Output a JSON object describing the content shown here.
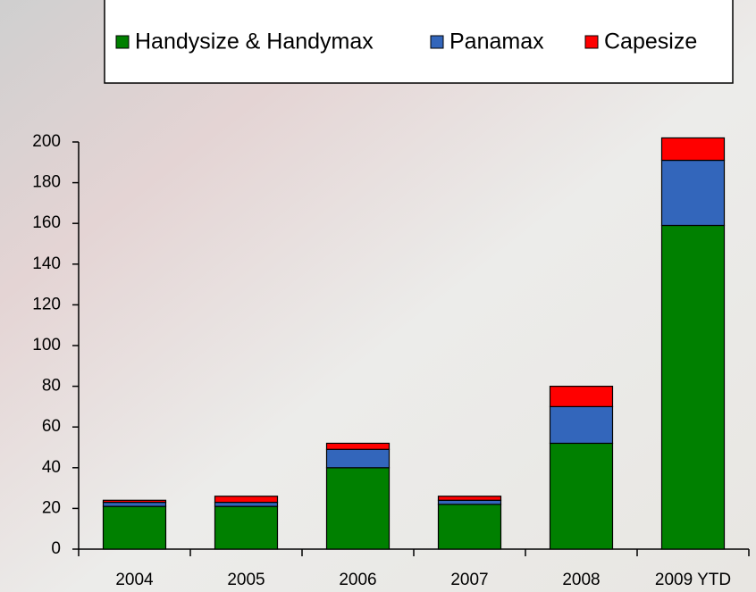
{
  "chart_data": {
    "type": "stacked-bar",
    "categories": [
      "2004",
      "2005",
      "2006",
      "2007",
      "2008",
      "2009 YTD"
    ],
    "series": [
      {
        "name": "Handysize & Handymax",
        "color": "#008000",
        "values": [
          21,
          21,
          40,
          22,
          52,
          159
        ]
      },
      {
        "name": "Panamax",
        "color": "#3366bb",
        "values": [
          2,
          2,
          9,
          2,
          18,
          32
        ]
      },
      {
        "name": "Capesize",
        "color": "#ff0000",
        "values": [
          1,
          3,
          3,
          2,
          10,
          11
        ]
      }
    ],
    "ylim": [
      0,
      200
    ],
    "yticks": [
      0,
      20,
      40,
      60,
      80,
      100,
      120,
      140,
      160,
      180,
      200
    ],
    "legend": "top"
  }
}
